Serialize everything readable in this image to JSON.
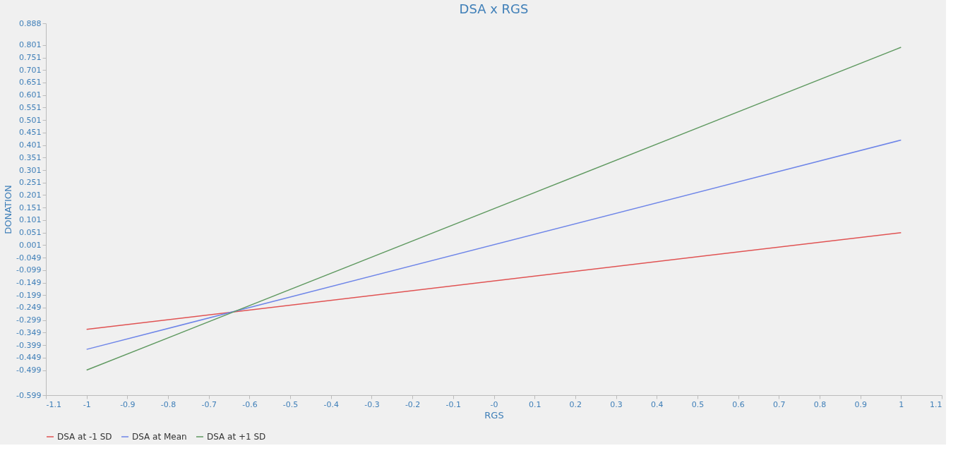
{
  "chart_data": {
    "type": "line",
    "title": "DSA x RGS",
    "xlabel": "RGS",
    "ylabel": "DONATION",
    "x": [
      -1,
      1
    ],
    "series": [
      {
        "name": "DSA at -1 SD",
        "color": "#e05252",
        "values": [
          -0.336,
          0.051
        ]
      },
      {
        "name": "DSA at Mean",
        "color": "#6e85e8",
        "values": [
          -0.416,
          0.421
        ]
      },
      {
        "name": "DSA at +1 SD",
        "color": "#5f9960",
        "values": [
          -0.499,
          0.792
        ]
      }
    ],
    "xlim": [
      -1.1,
      1.1
    ],
    "xticks": [
      -1.1,
      -1,
      -0.9,
      -0.8,
      -0.7,
      -0.6,
      -0.5,
      -0.4,
      -0.3,
      -0.2,
      -0.1,
      {
        "value": 0,
        "label": "-0"
      },
      0.1,
      0.2,
      0.3,
      0.4,
      0.5,
      0.6,
      0.7,
      0.8,
      0.9,
      1,
      1.1
    ],
    "ylim": [
      -0.599,
      0.888
    ],
    "yticks": [
      0.888,
      0.801,
      0.751,
      0.701,
      0.651,
      0.601,
      0.551,
      0.501,
      0.451,
      0.401,
      0.351,
      0.301,
      0.251,
      0.201,
      0.151,
      0.101,
      0.051,
      0.001,
      -0.049,
      -0.099,
      -0.149,
      -0.199,
      -0.249,
      -0.299,
      -0.349,
      -0.399,
      -0.449,
      -0.499,
      -0.599
    ],
    "grid": false,
    "legend": "bottom",
    "marker": "none",
    "line_style": "solid"
  }
}
